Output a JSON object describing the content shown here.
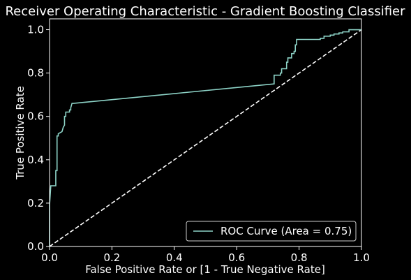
{
  "chart_data": {
    "type": "line",
    "title": "Receiver Operating Characteristic - Gradient Boosting Classifier",
    "xlabel": "False Positive Rate or [1 - True Negative Rate]",
    "ylabel": "True Positive Rate",
    "xlim": [
      0.0,
      1.0
    ],
    "ylim": [
      0.0,
      1.05
    ],
    "xticks": [
      0.0,
      0.2,
      0.4,
      0.6,
      0.8,
      1.0
    ],
    "xtick_labels": [
      "0.0",
      "0.2",
      "0.4",
      "0.6",
      "0.8",
      "1.0"
    ],
    "yticks": [
      0.0,
      0.2,
      0.4,
      0.6,
      0.8,
      1.0
    ],
    "ytick_labels": [
      "0.0",
      "0.2",
      "0.4",
      "0.6",
      "0.8",
      "1.0"
    ],
    "legend_position": "lower-right",
    "series": [
      {
        "name": "ROC Curve (Area = 0.75)",
        "color": "#8dd3c7",
        "style": "solid",
        "x": [
          0.0,
          0.0,
          0.004,
          0.004,
          0.02,
          0.02,
          0.024,
          0.024,
          0.028,
          0.028,
          0.04,
          0.044,
          0.048,
          0.048,
          0.052,
          0.052,
          0.064,
          0.064,
          0.068,
          0.068,
          0.072,
          0.076,
          0.72,
          0.72,
          0.728,
          0.728,
          0.74,
          0.74,
          0.744,
          0.744,
          0.76,
          0.76,
          0.764,
          0.764,
          0.776,
          0.776,
          0.784,
          0.784,
          0.788,
          0.788,
          0.792,
          0.792,
          0.8,
          0.8,
          0.868,
          0.868,
          0.88,
          0.88,
          0.9,
          0.9,
          0.912,
          0.912,
          0.928,
          0.928,
          0.94,
          0.94,
          0.96,
          0.96,
          1.0
        ],
        "y": [
          0.0,
          0.19,
          0.28,
          0.28,
          0.28,
          0.35,
          0.35,
          0.51,
          0.51,
          0.52,
          0.53,
          0.55,
          0.56,
          0.6,
          0.6,
          0.62,
          0.62,
          0.63,
          0.63,
          0.64,
          0.66,
          0.66,
          0.75,
          0.79,
          0.79,
          0.79,
          0.79,
          0.8,
          0.8,
          0.82,
          0.82,
          0.85,
          0.85,
          0.87,
          0.87,
          0.89,
          0.89,
          0.9,
          0.9,
          0.93,
          0.93,
          0.955,
          0.955,
          0.955,
          0.955,
          0.96,
          0.96,
          0.97,
          0.97,
          0.975,
          0.975,
          0.98,
          0.98,
          0.985,
          0.985,
          0.99,
          0.99,
          1.0,
          1.0
        ]
      },
      {
        "name": "chance",
        "color": "#ffffff",
        "style": "dashed",
        "x": [
          0.0,
          1.0
        ],
        "y": [
          0.0,
          1.0
        ]
      }
    ]
  }
}
